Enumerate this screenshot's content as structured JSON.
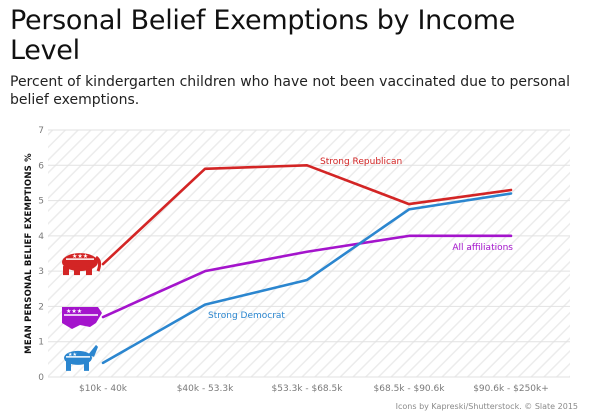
{
  "title": "Personal Belief Exemptions by Income Level",
  "subtitle": "Percent of kindergarten children who have not been vaccinated due to personal belief exemptions.",
  "credit": "Icons by Kapreski/Shutterstock. © Slate 2015",
  "icons": [
    "elephant-flag-icon",
    "usa-map-flag-icon",
    "donkey-flag-icon"
  ],
  "colors": {
    "strong_republican": "#d32525",
    "all_affiliations": "#a414cc",
    "strong_democrat": "#2b86cf",
    "grid": "#e2e2e2",
    "hatch": "#efefef"
  },
  "chart_data": {
    "type": "line",
    "ylabel": "MEAN PERSONAL BELIEF EXEMPTIONS %",
    "xlabel": "",
    "categories": [
      "$10k - 40k",
      "$40k - 53.3k",
      "$53.3k - $68.5k",
      "$68.5k - $90.6k",
      "$90.6k - $250k+"
    ],
    "ylim": [
      0,
      7
    ],
    "yticks": [
      "0",
      "1",
      "2",
      "3",
      "4",
      "5",
      "6",
      "7"
    ],
    "grid": true,
    "series": [
      {
        "name": "Strong Republican",
        "values": [
          3.2,
          5.9,
          6.0,
          4.9,
          5.3
        ]
      },
      {
        "name": "All affiliations",
        "values": [
          1.7,
          3.0,
          3.55,
          4.0,
          4.0
        ]
      },
      {
        "name": "Strong Democrat",
        "values": [
          0.4,
          2.05,
          2.75,
          4.75,
          5.2
        ]
      }
    ]
  }
}
